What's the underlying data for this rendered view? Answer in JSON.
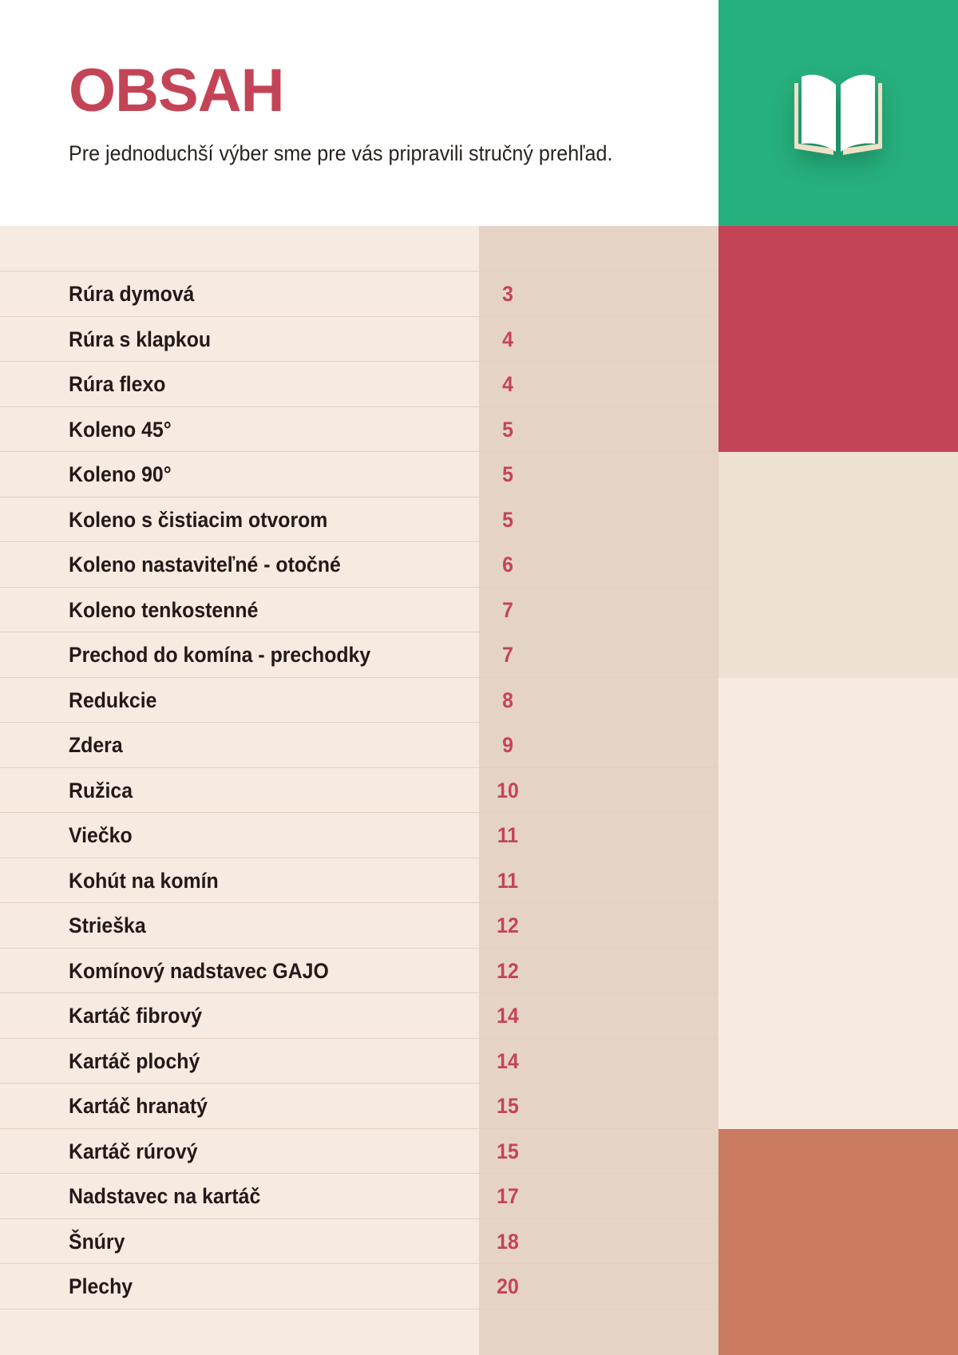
{
  "header": {
    "title": "OBSAH",
    "subtitle": "Pre jednoduchší výber sme pre vás pripravili stručný prehľad.",
    "icon": "open-book-icon"
  },
  "colors": {
    "accent_red": "#c44457",
    "accent_green": "#26b07d",
    "accent_terracotta": "#cb7b60",
    "background_cream": "#f7ebe1",
    "number_column": "#e5d4c6"
  },
  "toc": {
    "items": [
      {
        "label": "Rúra dymová",
        "page": "3"
      },
      {
        "label": "Rúra s klapkou",
        "page": "4"
      },
      {
        "label": "Rúra flexo",
        "page": "4"
      },
      {
        "label": "Koleno 45°",
        "page": "5"
      },
      {
        "label": "Koleno 90°",
        "page": "5"
      },
      {
        "label": "Koleno s čistiacim otvorom",
        "page": "5"
      },
      {
        "label": "Koleno nastaviteľné - otočné",
        "page": "6"
      },
      {
        "label": "Koleno tenkostenné",
        "page": "7"
      },
      {
        "label": "Prechod do komína - prechodky",
        "page": "7"
      },
      {
        "label": "Redukcie",
        "page": "8"
      },
      {
        "label": "Zdera",
        "page": "9"
      },
      {
        "label": "Ružica",
        "page": "10"
      },
      {
        "label": "Viečko",
        "page": "11"
      },
      {
        "label": "Kohút na komín",
        "page": "11"
      },
      {
        "label": "Strieška",
        "page": "12"
      },
      {
        "label": "Komínový nadstavec GAJO",
        "page": "12"
      },
      {
        "label": "Kartáč fibrový",
        "page": "14"
      },
      {
        "label": "Kartáč plochý",
        "page": "14"
      },
      {
        "label": "Kartáč hranatý",
        "page": "15"
      },
      {
        "label": "Kartáč rúrový",
        "page": "15"
      },
      {
        "label": "Nadstavec na kartáč",
        "page": "17"
      },
      {
        "label": "Šnúry",
        "page": "18"
      },
      {
        "label": "Plechy",
        "page": "20"
      }
    ]
  }
}
